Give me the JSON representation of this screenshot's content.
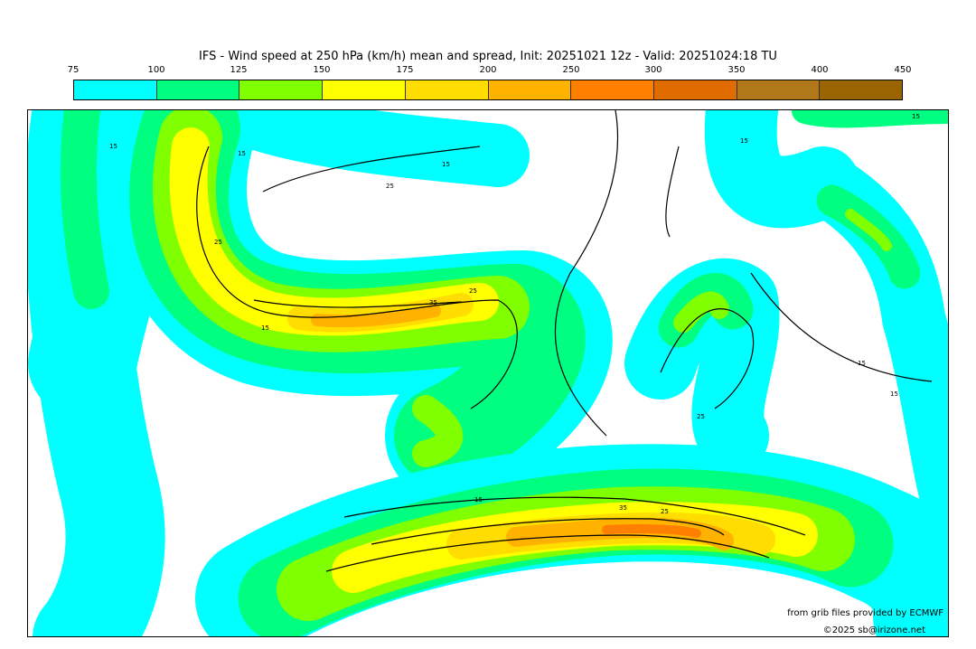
{
  "title": "IFS - Wind speed at 250 hPa (km/h) mean and spread, Init: 20251021 12z - Valid: 20251024:18 TU",
  "legend": {
    "ticks": [
      "75",
      "100",
      "125",
      "150",
      "175",
      "200",
      "250",
      "300",
      "350",
      "400",
      "450"
    ],
    "colors": [
      "#00ffff",
      "#00ff80",
      "#80ff00",
      "#ffff00",
      "#ffdd00",
      "#ffb300",
      "#ff8000",
      "#e06c00",
      "#b07818",
      "#9a6400"
    ]
  },
  "contour_labels": [
    "15",
    "15",
    "25",
    "25",
    "15",
    "35",
    "25",
    "15",
    "15",
    "25",
    "15",
    "15",
    "15",
    "35",
    "25",
    "15"
  ],
  "credits": {
    "source": "from grib files provided by ECMWF",
    "copyright": "©2025 sb@irizone.net"
  }
}
